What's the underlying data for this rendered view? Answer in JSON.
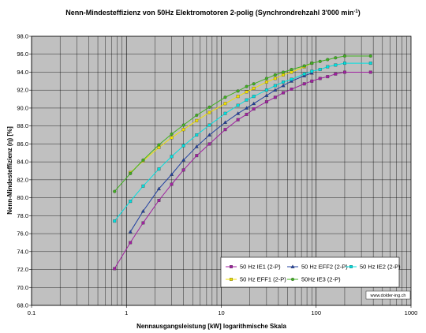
{
  "chart_data": {
    "type": "line",
    "title": "Nenn-Mindesteffizienz von 50Hz Elektromotoren 2-polig (Synchrondrehzahl 3'000 min",
    "title_sup": "-1",
    "title_end": ")",
    "xlabel": "Nennausgangsleistung [kW] logarithmische Skala",
    "ylabel": "Nenn-Mindesteffizienz (η) [%]",
    "x_scale": "log",
    "xlim": [
      0.1,
      1000
    ],
    "ylim": [
      68.0,
      98.0
    ],
    "x_ticks": [
      "0.1",
      "1",
      "10",
      "100",
      "1000"
    ],
    "y_ticks": [
      "68.0",
      "70.0",
      "72.0",
      "74.0",
      "76.0",
      "78.0",
      "80.0",
      "82.0",
      "84.0",
      "86.0",
      "88.0",
      "90.0",
      "92.0",
      "94.0",
      "96.0",
      "98.0"
    ],
    "grid": true,
    "legend_position": "bottom-right",
    "credit": "www.dolder-ing.ch",
    "series": [
      {
        "name": "50 Hz IE1 (2-P)",
        "color": "#a020a0",
        "marker": "square",
        "x": [
          0.75,
          1.1,
          1.5,
          2.2,
          3,
          4,
          5.5,
          7.5,
          11,
          15,
          18.5,
          22,
          30,
          37,
          45,
          55,
          75,
          90,
          110,
          132,
          160,
          200,
          375
        ],
        "y": [
          72.1,
          75.0,
          77.2,
          79.7,
          81.5,
          83.1,
          84.7,
          86.0,
          87.6,
          88.7,
          89.3,
          89.9,
          90.7,
          91.2,
          91.7,
          92.1,
          92.7,
          93.0,
          93.3,
          93.5,
          93.8,
          94.0,
          94.0
        ]
      },
      {
        "name": "50 Hz EFF2 (2-P)",
        "color": "#2040a0",
        "marker": "triangle",
        "x": [
          1.1,
          1.5,
          2.2,
          3,
          4,
          5.5,
          7.5,
          11,
          15,
          18.5,
          22,
          30,
          37,
          45,
          55,
          75,
          90
        ],
        "y": [
          76.2,
          78.5,
          81.0,
          82.6,
          84.2,
          85.7,
          87.0,
          88.4,
          89.4,
          90.0,
          90.5,
          91.4,
          92.0,
          92.5,
          93.0,
          93.6,
          93.9
        ]
      },
      {
        "name": "50 Hz IE2 (2-P)",
        "color": "#00e0e0",
        "marker": "square",
        "x": [
          0.75,
          1.1,
          1.5,
          2.2,
          3,
          4,
          5.5,
          7.5,
          11,
          15,
          18.5,
          22,
          30,
          37,
          45,
          55,
          75,
          90,
          110,
          132,
          160,
          200,
          375
        ],
        "y": [
          77.4,
          79.6,
          81.3,
          83.2,
          84.6,
          85.8,
          87.0,
          88.1,
          89.4,
          90.3,
          90.9,
          91.3,
          92.0,
          92.5,
          92.9,
          93.2,
          93.8,
          94.1,
          94.3,
          94.6,
          94.8,
          95.0,
          95.0
        ]
      },
      {
        "name": "50 Hz EFF1 (2-P)",
        "color": "#f0e000",
        "marker": "square",
        "x": [
          1.1,
          1.5,
          2.2,
          3,
          4,
          5.5,
          7.5,
          11,
          15,
          18.5,
          22,
          30,
          37,
          45,
          55,
          75,
          90
        ],
        "y": [
          82.8,
          84.1,
          85.6,
          86.7,
          87.6,
          88.6,
          89.5,
          90.5,
          91.3,
          91.8,
          92.2,
          92.9,
          93.3,
          93.7,
          94.0,
          94.6,
          95.0
        ]
      },
      {
        "name": "50Hz IE3 (2-P)",
        "color": "#40b020",
        "marker": "circle",
        "x": [
          0.75,
          1.1,
          1.5,
          2.2,
          3,
          4,
          5.5,
          7.5,
          11,
          15,
          18.5,
          22,
          30,
          37,
          45,
          55,
          75,
          90,
          110,
          132,
          160,
          200,
          375
        ],
        "y": [
          80.7,
          82.7,
          84.2,
          85.9,
          87.1,
          88.1,
          89.2,
          90.1,
          91.2,
          91.9,
          92.4,
          92.7,
          93.3,
          93.7,
          94.0,
          94.3,
          94.7,
          95.0,
          95.2,
          95.4,
          95.6,
          95.8,
          95.8
        ]
      }
    ]
  }
}
